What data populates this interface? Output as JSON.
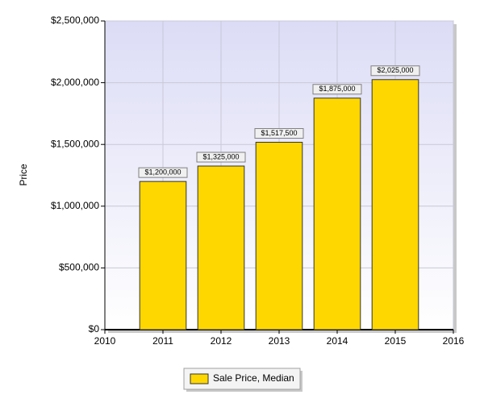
{
  "chart_data": {
    "type": "bar",
    "y_label": "Price",
    "x": [
      2011,
      2012,
      2013,
      2014,
      2015
    ],
    "xlim": [
      2010,
      2016
    ],
    "xticks": [
      2010,
      2011,
      2012,
      2013,
      2014,
      2015,
      2016
    ],
    "ylim": [
      0,
      2500000
    ],
    "yticks": [
      {
        "value": 0,
        "label": "$0"
      },
      {
        "value": 500000,
        "label": "$500,000"
      },
      {
        "value": 1000000,
        "label": "$1,000,000"
      },
      {
        "value": 1500000,
        "label": "$1,500,000"
      },
      {
        "value": 2000000,
        "label": "$2,000,000"
      },
      {
        "value": 2500000,
        "label": "$2,500,000"
      }
    ],
    "grid": true,
    "legend": "bottom",
    "series": [
      {
        "name": "Sale Price, Median",
        "color": "#ffd700",
        "values": [
          1200000,
          1325000,
          1517500,
          1875000,
          2025000
        ],
        "value_labels": [
          "$1,200,000",
          "$1,325,000",
          "$1,517,500",
          "$1,875,000",
          "$2,025,000"
        ]
      }
    ]
  }
}
